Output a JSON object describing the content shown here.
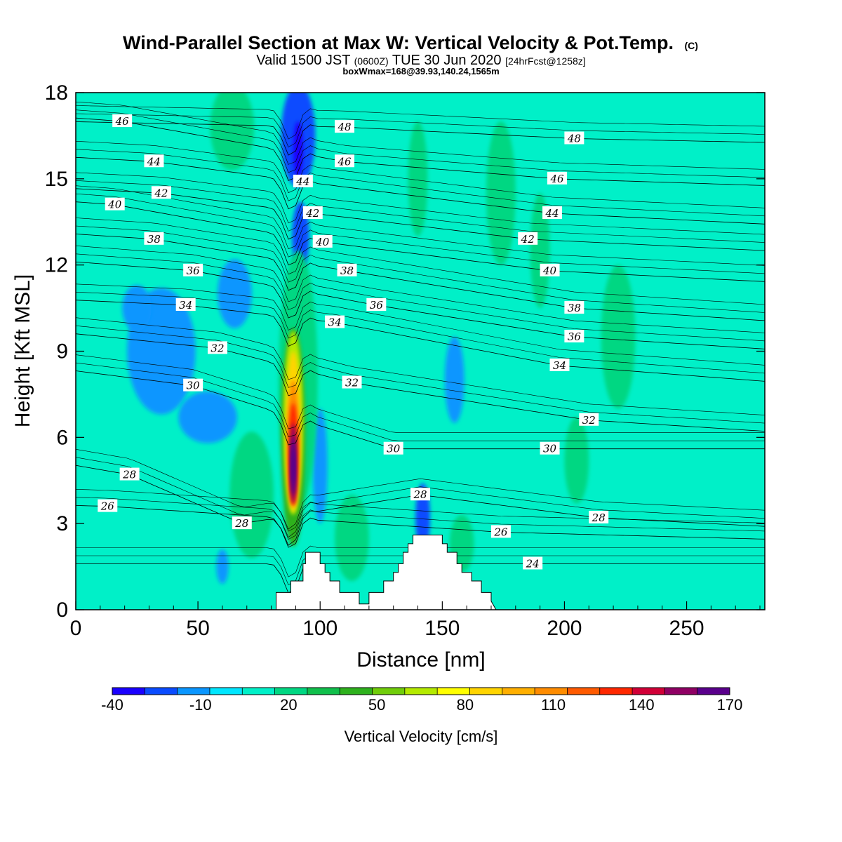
{
  "title_main": "Wind-Parallel Section at Max W: Vertical Velocity & Pot.Temp.",
  "title_copyright": "(C)",
  "subtitle_pre": "Valid 1500 JST",
  "subtitle_z": "(0600Z)",
  "subtitle_mid": "TUE 30 Jun 2020",
  "subtitle_fcst": "[24hrFcst@1258z]",
  "subtitle_box": "boxWmax=168@39.93,140.24,1565m",
  "colorbar_label": "Vertical Velocity [cm/s]",
  "colors": {
    "bins": [
      "#1a00ff",
      "#0a4bff",
      "#0a96ff",
      "#00e6ff",
      "#00f0c8",
      "#00d782",
      "#10bf4b",
      "#2eb11d",
      "#70cd0a",
      "#b4ea00",
      "#ffff00",
      "#ffd400",
      "#ffaf00",
      "#ff8c00",
      "#ff5a00",
      "#ff2800",
      "#d10037",
      "#8f0064",
      "#5a008c"
    ],
    "terrain": "#ffffff"
  },
  "chart_data": {
    "type": "heatmap",
    "xlabel": "Distance [nm]",
    "ylabel": "Height [Kft MSL]",
    "xlim": [
      0,
      282
    ],
    "ylim": [
      0,
      18
    ],
    "xticks": [
      0,
      50,
      100,
      150,
      200,
      250
    ],
    "yticks": [
      0,
      3,
      6,
      9,
      12,
      15,
      18
    ],
    "colorbar": {
      "min": -40,
      "max": 170,
      "step": 10,
      "tick_labels": [
        "-40",
        "-10",
        "20",
        "50",
        "80",
        "110",
        "140",
        "170"
      ]
    },
    "terrain_profile": {
      "x": [
        80,
        82,
        86,
        88,
        92,
        93,
        94,
        98,
        100,
        102,
        104,
        106,
        108,
        110,
        112,
        114,
        116,
        118,
        120,
        122,
        124,
        126,
        128,
        130,
        132,
        134,
        136,
        138,
        140,
        142,
        144,
        146,
        148,
        150,
        152,
        154,
        156,
        158,
        160,
        162,
        164,
        166,
        168,
        170
      ],
      "h": [
        0,
        0.6,
        0.6,
        1.0,
        1.0,
        1.6,
        2.0,
        2.0,
        1.6,
        1.3,
        1.0,
        1.0,
        0.6,
        0.6,
        0.6,
        0.6,
        0.2,
        0.2,
        0.6,
        0.6,
        0.6,
        1.0,
        1.0,
        1.3,
        1.6,
        2.0,
        2.3,
        2.6,
        2.6,
        2.6,
        2.6,
        2.6,
        2.6,
        2.3,
        2.0,
        2.0,
        1.6,
        1.3,
        1.3,
        1.0,
        1.0,
        0.6,
        0.6,
        0.3
      ]
    },
    "theta_contours": [
      {
        "value": 24,
        "label_points": [
          [
            187,
            1.6
          ]
        ]
      },
      {
        "value": 26,
        "label_points": [
          [
            13,
            3.6
          ],
          [
            174,
            2.7
          ]
        ]
      },
      {
        "value": 28,
        "label_points": [
          [
            22,
            4.7
          ],
          [
            68,
            3.0
          ],
          [
            141,
            4.0
          ],
          [
            214,
            3.2
          ]
        ]
      },
      {
        "value": 30,
        "label_points": [
          [
            48,
            7.8
          ],
          [
            130,
            5.6
          ],
          [
            194,
            5.6
          ]
        ]
      },
      {
        "value": 32,
        "label_points": [
          [
            58,
            9.1
          ],
          [
            113,
            7.9
          ],
          [
            210,
            6.6
          ]
        ]
      },
      {
        "value": 34,
        "label_points": [
          [
            45,
            10.6
          ],
          [
            106,
            10.0
          ],
          [
            198,
            8.5
          ]
        ]
      },
      {
        "value": 36,
        "label_points": [
          [
            48,
            11.8
          ],
          [
            123,
            10.6
          ],
          [
            204,
            9.5
          ]
        ]
      },
      {
        "value": 38,
        "label_points": [
          [
            32,
            12.9
          ],
          [
            111,
            11.8
          ],
          [
            204,
            10.5
          ]
        ]
      },
      {
        "value": 40,
        "label_points": [
          [
            16,
            14.1
          ],
          [
            101,
            12.8
          ],
          [
            194,
            11.8
          ]
        ]
      },
      {
        "value": 42,
        "label_points": [
          [
            35,
            14.5
          ],
          [
            97,
            13.8
          ],
          [
            185,
            12.9
          ]
        ]
      },
      {
        "value": 44,
        "label_points": [
          [
            32,
            15.6
          ],
          [
            93,
            14.9
          ],
          [
            195,
            13.8
          ]
        ]
      },
      {
        "value": 46,
        "label_points": [
          [
            19,
            17.0
          ],
          [
            110,
            15.6
          ],
          [
            197,
            15.0
          ]
        ]
      },
      {
        "value": 48,
        "label_points": [
          [
            110,
            16.8
          ],
          [
            204,
            16.4
          ]
        ]
      }
    ],
    "w_features": [
      {
        "x": 89,
        "h": 5.0,
        "w_max": 168
      },
      {
        "x": 92,
        "h": 16.0,
        "w_min": -40
      },
      {
        "x": 142,
        "h": 3.0,
        "w_min": -30
      }
    ]
  }
}
